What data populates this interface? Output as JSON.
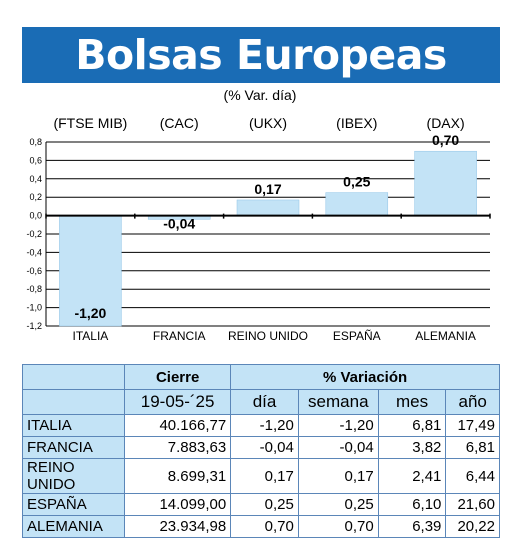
{
  "title": "Bolsas Europeas",
  "subtitle": "(% Var. día)",
  "chart_data": {
    "type": "bar",
    "categories": [
      "ITALIA",
      "FRANCIA",
      "REINO UNIDO",
      "ESPAÑA",
      "ALEMANIA"
    ],
    "index_labels": [
      "(FTSE MIB)",
      "(CAC)",
      "(UKX)",
      "(IBEX)",
      "(DAX)"
    ],
    "values": [
      -1.2,
      -0.04,
      0.17,
      0.25,
      0.7
    ],
    "value_labels": [
      "-1,20",
      "-0,04",
      "0,17",
      "0,25",
      "0,70"
    ],
    "yticks": [
      "0,8",
      "0,6",
      "0,4",
      "0,2",
      "0,0",
      "-0,2",
      "-0,4",
      "-0,6",
      "-0,8",
      "-1,0",
      "-1,2"
    ],
    "ylim": [
      -1.2,
      0.8
    ],
    "grid": true,
    "bar_color": "#c3e3f6"
  },
  "table": {
    "headers": {
      "cierre": "Cierre",
      "variacion": "% Variación"
    },
    "subheaders": [
      "19-05-´25",
      "día",
      "semana",
      "mes",
      "año"
    ],
    "rows": [
      {
        "name": "ITALIA",
        "cierre": "40.166,77",
        "dia": "-1,20",
        "semana": "-1,20",
        "mes": "6,81",
        "ano": "17,49"
      },
      {
        "name": "FRANCIA",
        "cierre": "7.883,63",
        "dia": "-0,04",
        "semana": "-0,04",
        "mes": "3,82",
        "ano": "6,81"
      },
      {
        "name": "REINO UNIDO",
        "cierre": "8.699,31",
        "dia": "0,17",
        "semana": "0,17",
        "mes": "2,41",
        "ano": "6,44"
      },
      {
        "name": "ESPAÑA",
        "cierre": "14.099,00",
        "dia": "0,25",
        "semana": "0,25",
        "mes": "6,10",
        "ano": "21,60"
      },
      {
        "name": "ALEMANIA",
        "cierre": "23.934,98",
        "dia": "0,70",
        "semana": "0,70",
        "mes": "6,39",
        "ano": "20,22"
      }
    ]
  },
  "colors": {
    "banner": "#1a6cb5",
    "light_blue": "#c3e3f6"
  }
}
